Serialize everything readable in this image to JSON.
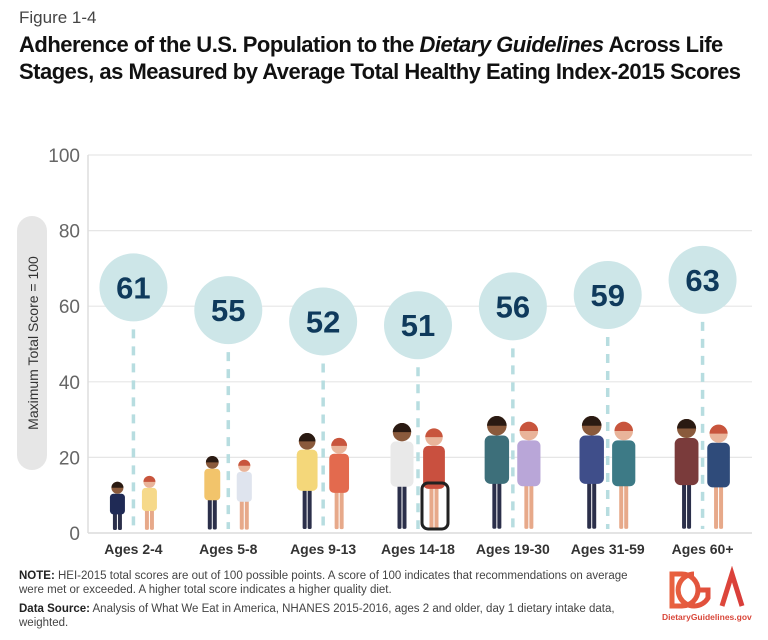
{
  "figure_label": "Figure 1-4",
  "title": {
    "part1": "Adherence of the U.S. Population to the ",
    "italic": "Dietary Guidelines",
    "part2": " Across Life Stages, as Measured by Average Total Healthy Eating Index-2015 Scores"
  },
  "chart_data": {
    "type": "bar",
    "title": "Adherence of the U.S. Population to the Dietary Guidelines Across Life Stages, as Measured by Average Total Healthy Eating Index-2015 Scores",
    "ylabel": "Maximum Total Score = 100",
    "xlabel": "",
    "ylim": [
      0,
      100
    ],
    "yticks": [
      "0",
      "20",
      "40",
      "60",
      "80",
      "100"
    ],
    "grid": true,
    "categories": [
      "Ages 2-4",
      "Ages 5-8",
      "Ages 9-13",
      "Ages 14-18",
      "Ages 19-30",
      "Ages 31-59",
      "Ages 60+"
    ],
    "values": [
      61,
      55,
      52,
      51,
      56,
      59,
      63
    ],
    "marker": "circle-lollipop",
    "colors": {
      "circle": "#cde6e8",
      "number": "#0f3a5c",
      "dash": "#b7dde0",
      "grid": "#e6e6e6",
      "ylabel_pill": "#e6e6e6"
    }
  },
  "footer": {
    "note_label": "NOTE:",
    "note_text": " HEI-2015 total scores are out of 100 possible points. A score of 100 indicates that recommendations on average were met or exceeded. A higher total score indicates a higher quality diet.",
    "source_label": "Data Source:",
    "source_text": " Analysis of What We Eat in America, NHANES 2015-2016, ages 2 and older, day 1 dietary intake data, weighted."
  },
  "logo": {
    "text": "DGA",
    "url": "DietaryGuidelines.gov",
    "color": "#e0553f"
  }
}
